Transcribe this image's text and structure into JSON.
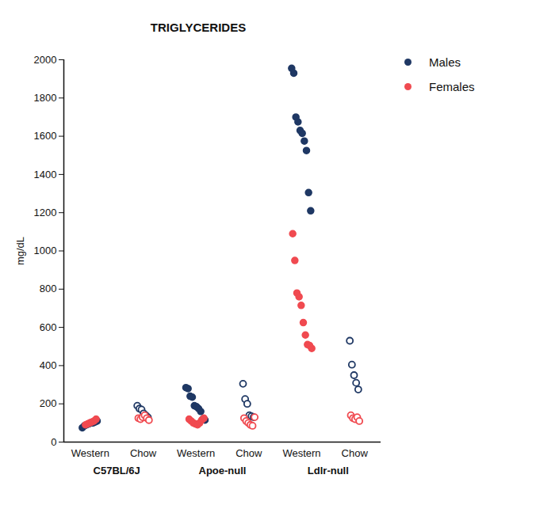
{
  "chart_data": {
    "type": "scatter",
    "title": "TRIGLYCERIDES",
    "y_label": "mg/dL",
    "categories": [
      "Western",
      "Chow",
      "Western",
      "Chow",
      "Western",
      "Chow"
    ],
    "groups": [
      "C57BL/6J",
      "Apoe-null",
      "Ldlr-null"
    ],
    "series": [
      {
        "name": "Males",
        "color": "#1f3864",
        "values": [
          [
            75,
            85,
            90,
            95,
            100,
            100,
            105,
            110
          ],
          [
            190,
            175,
            170,
            150,
            140,
            130
          ],
          [
            285,
            280,
            240,
            235,
            190,
            185,
            175,
            160,
            120,
            115
          ],
          [
            305,
            225,
            200,
            140,
            135,
            130
          ],
          [
            1955,
            1930,
            1700,
            1675,
            1630,
            1615,
            1575,
            1525,
            1305,
            1210
          ],
          [
            530,
            405,
            350,
            310,
            275
          ]
        ]
      },
      {
        "name": "Females",
        "color": "#f04a50",
        "values": [
          [
            90,
            95,
            100,
            105,
            110,
            120
          ],
          [
            125,
            120,
            130,
            140,
            125,
            115
          ],
          [
            120,
            110,
            100,
            95,
            90,
            100,
            115,
            125
          ],
          [
            125,
            110,
            100,
            90,
            85,
            130
          ],
          [
            1090,
            950,
            780,
            760,
            715,
            625,
            560,
            510,
            505,
            490
          ],
          [
            140,
            125,
            120,
            130,
            110
          ]
        ]
      }
    ],
    "ylim": [
      0,
      2000
    ],
    "yticks": [
      0,
      200,
      400,
      600,
      800,
      1000,
      1200,
      1400,
      1600,
      1800,
      2000
    ],
    "legend": "top-right"
  }
}
